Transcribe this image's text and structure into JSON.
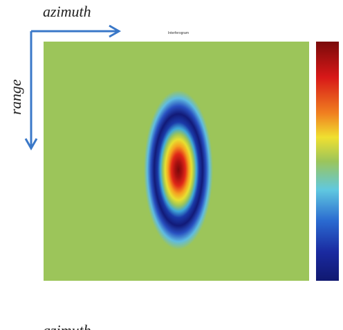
{
  "figure": {
    "title": "Interferogram",
    "axis_labels": {
      "horizontal": "azimuth",
      "vertical": "range"
    },
    "caption": "azimuth"
  }
}
